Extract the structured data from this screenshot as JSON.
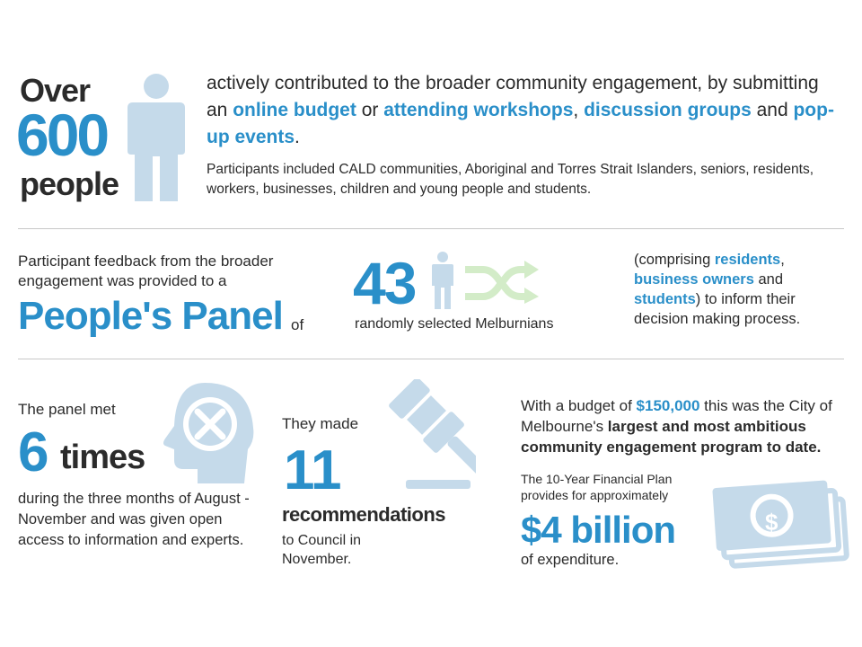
{
  "section1": {
    "over": "Over",
    "number": "600",
    "people": "people",
    "main": [
      {
        "text": "actively contributed to the broader community engagement, by submitting an ",
        "hl": false
      },
      {
        "text": "online budget",
        "hl": true
      },
      {
        "text": " or ",
        "hl": false
      },
      {
        "text": "attending workshops",
        "hl": true
      },
      {
        "text": ", ",
        "hl": false
      },
      {
        "text": "discussion groups",
        "hl": true
      },
      {
        "text": " and ",
        "hl": false
      },
      {
        "text": "pop-up events",
        "hl": true
      },
      {
        "text": ".",
        "hl": false
      }
    ],
    "sub": "Participants included CALD communities, Aboriginal and Torres Strait Islanders, seniors, residents, workers, businesses, children and young people and students."
  },
  "section2": {
    "intro": "Participant feedback from the broader engagement was provided to a",
    "panel": "People's Panel",
    "of": "of",
    "number": "43",
    "random": "randomly selected Melburnians",
    "right": [
      {
        "text": "(comprising ",
        "hl": false
      },
      {
        "text": "residents",
        "hl": true
      },
      {
        "text": ", ",
        "hl": false
      },
      {
        "text": "business owners",
        "hl": true
      },
      {
        "text": " and ",
        "hl": false
      },
      {
        "text": "students",
        "hl": true
      },
      {
        "text": ") to inform their decision making process.",
        "hl": false
      }
    ]
  },
  "section3": {
    "met": "The panel met",
    "six": "6",
    "times": "times",
    "during": "during the three months of August - November and was given open access to information and experts.",
    "made": "They made",
    "eleven": "11",
    "recs": "recommendations",
    "council": "to Council in November.",
    "budget": [
      {
        "text": "With a budget of ",
        "style": "plain"
      },
      {
        "text": "$150,000",
        "style": "hl"
      },
      {
        "text": " this was the City of Melbourne's ",
        "style": "plain"
      },
      {
        "text": "largest and most ambitious community engagement program to date.",
        "style": "b"
      }
    ],
    "plan": "The 10-Year Financial Plan provides for approximately",
    "billion": "$4 billion",
    "expend": "of expenditure."
  },
  "colors": {
    "accent": "#2a8fc9",
    "icon_light": "#c5daea",
    "icon_green": "#d3ecc8",
    "text": "#2b2b2b",
    "divider": "#c8c8c8"
  },
  "icons": [
    "person-icon",
    "small-person-icon",
    "shuffle-icon",
    "head-tools-icon",
    "gavel-icon",
    "money-icon"
  ]
}
